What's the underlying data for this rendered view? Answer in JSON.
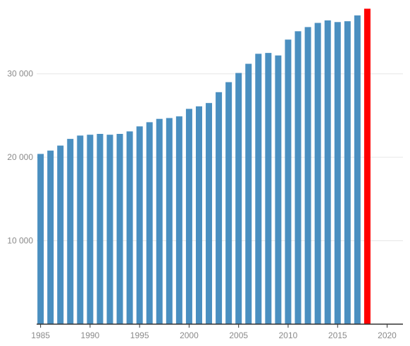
{
  "chart_data": {
    "type": "bar",
    "title": "",
    "xlabel": "",
    "ylabel": "",
    "x": [
      1985,
      1986,
      1987,
      1988,
      1989,
      1990,
      1991,
      1992,
      1993,
      1994,
      1995,
      1996,
      1997,
      1998,
      1999,
      2000,
      2001,
      2002,
      2003,
      2004,
      2005,
      2006,
      2007,
      2008,
      2009,
      2010,
      2011,
      2012,
      2013,
      2014,
      2015,
      2016,
      2017,
      2018
    ],
    "values": [
      20400,
      20800,
      21400,
      22200,
      22600,
      22700,
      22800,
      22700,
      22800,
      23100,
      23700,
      24200,
      24600,
      24700,
      24900,
      25800,
      26100,
      26500,
      27800,
      29000,
      30100,
      31200,
      32400,
      32500,
      32200,
      34100,
      35100,
      35600,
      36100,
      36400,
      36200,
      36300,
      37000,
      37800
    ],
    "highlight": {
      "x": 2018,
      "color": "#ff0000"
    },
    "bar_color": "#4a8fc0",
    "xlim": [
      1984.6,
      2021.6
    ],
    "ylim": [
      0,
      38000
    ],
    "x_ticks": [
      1985,
      1990,
      1995,
      2000,
      2005,
      2010,
      2015,
      2020
    ],
    "x_tick_labels": [
      "1985",
      "1990",
      "1995",
      "2000",
      "2005",
      "2010",
      "2015",
      "2020"
    ],
    "y_ticks": [
      10000,
      20000,
      30000
    ],
    "y_tick_labels": [
      "10 000",
      "20 000",
      "30 000"
    ],
    "grid": true,
    "legend": "none"
  }
}
